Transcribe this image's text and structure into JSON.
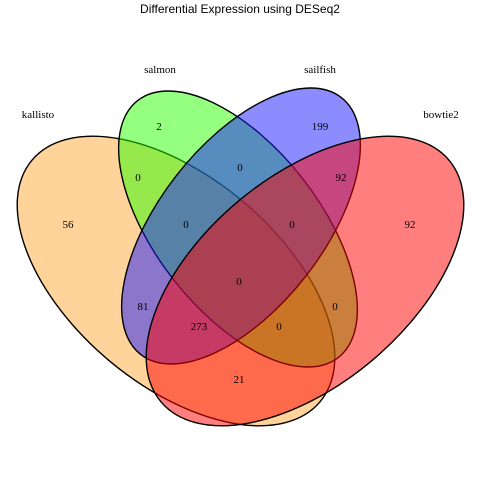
{
  "title": "Differential Expression using DESeq2",
  "sets": [
    {
      "name": "kallisto",
      "color": "#FFA733"
    },
    {
      "name": "salmon",
      "color": "#2BFF00"
    },
    {
      "name": "sailfish",
      "color": "#1A1AFF"
    },
    {
      "name": "bowtie2",
      "color": "#FF0000"
    }
  ],
  "regions": {
    "kallisto_only": "56",
    "salmon_only": "2",
    "sailfish_only": "199",
    "bowtie2_only": "92",
    "kallisto_salmon": "0",
    "salmon_sailfish": "0",
    "sailfish_bowtie2": "92",
    "kallisto_salmon_sailfish": "0",
    "salmon_sailfish_bowtie2": "0",
    "all_four": "0",
    "kallisto_sailfish": "81",
    "salmon_bowtie2": "0",
    "kallisto_sailfish_bowtie2": "273",
    "kallisto_salmon_bowtie2": "0",
    "kallisto_bowtie2": "21"
  }
}
